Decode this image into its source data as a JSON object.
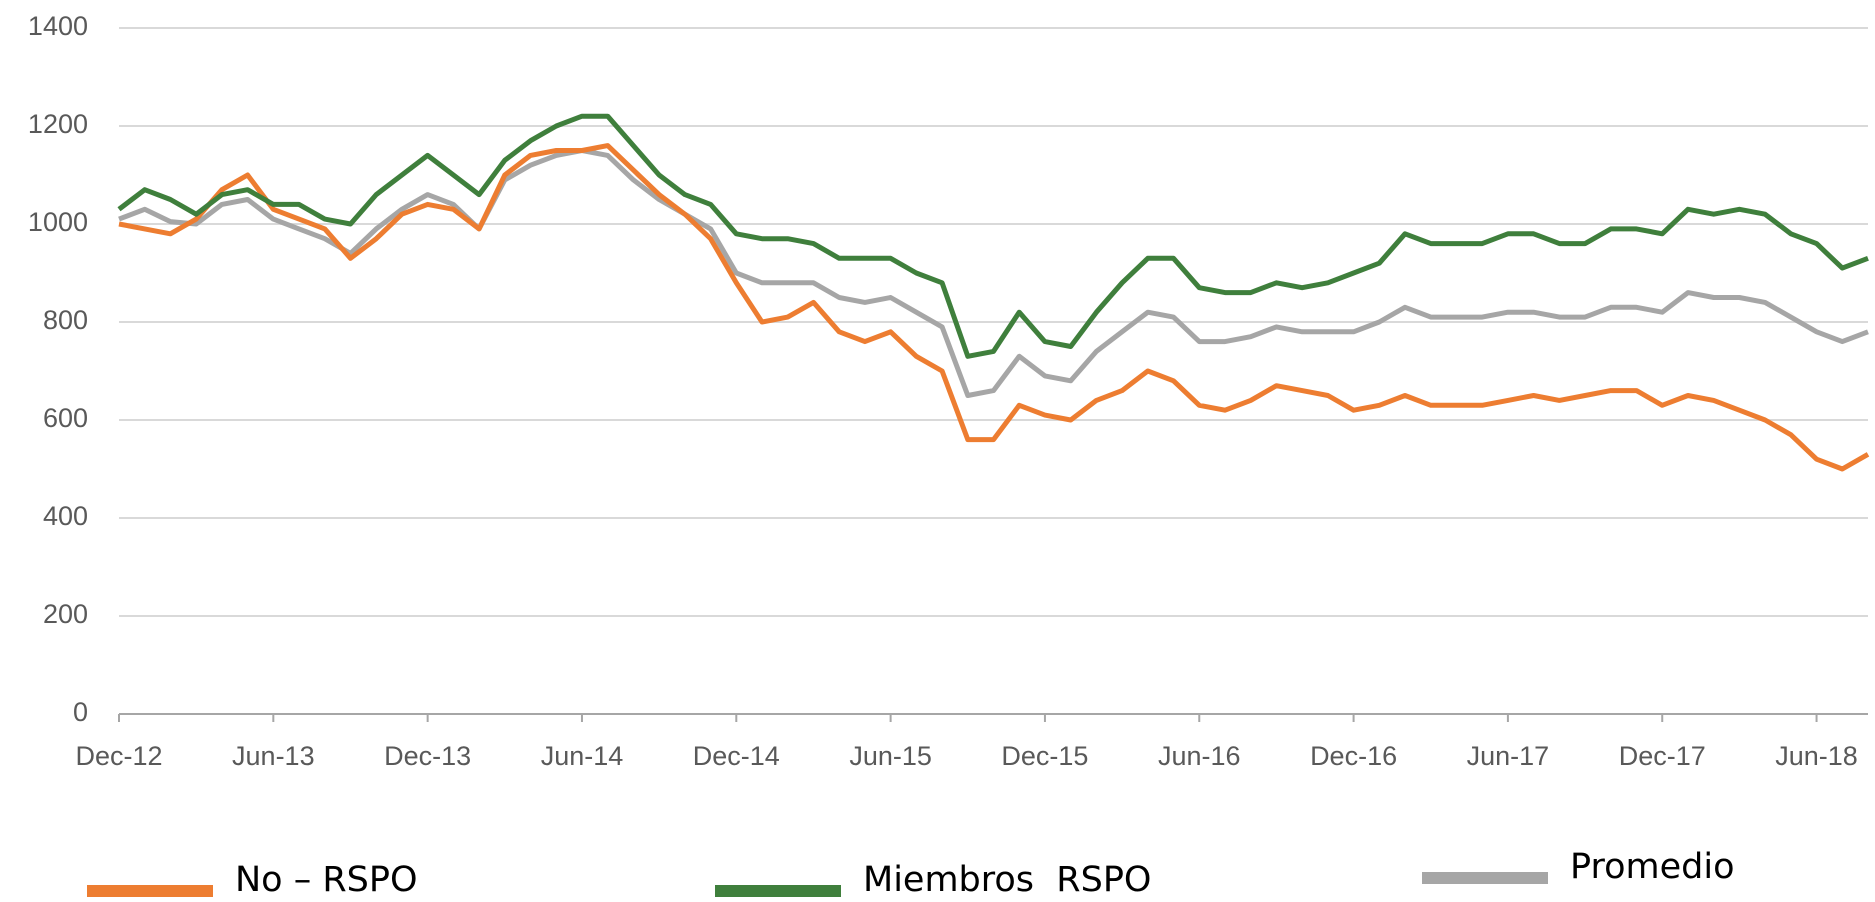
{
  "chart_data": {
    "type": "line",
    "categories": [
      "Dec-12",
      null,
      null,
      null,
      null,
      null,
      "Jun-13",
      null,
      null,
      null,
      null,
      null,
      "Dec-13",
      null,
      null,
      null,
      null,
      null,
      "Jun-14",
      null,
      null,
      null,
      null,
      null,
      "Dec-14",
      null,
      null,
      null,
      null,
      null,
      "Jun-15",
      null,
      null,
      null,
      null,
      null,
      "Dec-15",
      null,
      null,
      null,
      null,
      null,
      "Jun-16",
      null,
      null,
      null,
      null,
      null,
      "Dec-16",
      null,
      null,
      null,
      null,
      null,
      "Jun-17",
      null,
      null,
      null,
      null,
      null,
      "Dec-17",
      null,
      null,
      null,
      null,
      null,
      "Jun-18",
      null,
      null
    ],
    "series": [
      {
        "name": "No – RSPO",
        "color": "#ed7d31",
        "values": [
          1000,
          990,
          980,
          1010,
          1070,
          1100,
          1030,
          1010,
          990,
          930,
          970,
          1020,
          1040,
          1030,
          990,
          1100,
          1140,
          1150,
          1150,
          1160,
          1110,
          1060,
          1020,
          970,
          880,
          800,
          810,
          840,
          780,
          760,
          780,
          730,
          700,
          560,
          560,
          630,
          610,
          600,
          640,
          660,
          700,
          680,
          630,
          620,
          640,
          670,
          660,
          650,
          620,
          630,
          650,
          630,
          630,
          630,
          640,
          650,
          640,
          650,
          660,
          660,
          630,
          650,
          640,
          620,
          600,
          570,
          520,
          500,
          530
        ]
      },
      {
        "name": "Miembros  RSPO",
        "color": "#3f7f3c",
        "values": [
          1030,
          1070,
          1050,
          1020,
          1060,
          1070,
          1040,
          1040,
          1010,
          1000,
          1060,
          1100,
          1140,
          1100,
          1060,
          1130,
          1170,
          1200,
          1220,
          1220,
          1160,
          1100,
          1060,
          1040,
          980,
          970,
          970,
          960,
          930,
          930,
          930,
          900,
          880,
          730,
          740,
          820,
          760,
          750,
          820,
          880,
          930,
          930,
          870,
          860,
          860,
          880,
          870,
          880,
          900,
          920,
          980,
          960,
          960,
          960,
          980,
          980,
          960,
          960,
          990,
          990,
          980,
          1030,
          1020,
          1030,
          1020,
          980,
          960,
          910,
          930
        ]
      },
      {
        "name": "Promedio",
        "color": "#a6a6a6",
        "values": [
          1010,
          1030,
          1005,
          1000,
          1040,
          1050,
          1010,
          990,
          970,
          940,
          990,
          1030,
          1060,
          1040,
          990,
          1090,
          1120,
          1140,
          1150,
          1140,
          1090,
          1050,
          1020,
          990,
          900,
          880,
          880,
          880,
          850,
          840,
          850,
          820,
          790,
          650,
          660,
          730,
          690,
          680,
          740,
          780,
          820,
          810,
          760,
          760,
          770,
          790,
          780,
          780,
          780,
          800,
          830,
          810,
          810,
          810,
          820,
          820,
          810,
          810,
          830,
          830,
          820,
          860,
          850,
          850,
          840,
          810,
          780,
          760,
          780
        ]
      }
    ],
    "ylim": [
      0,
      1400
    ],
    "yticks": [
      0,
      200,
      400,
      600,
      800,
      1000,
      1200,
      1400
    ],
    "grid": true
  }
}
